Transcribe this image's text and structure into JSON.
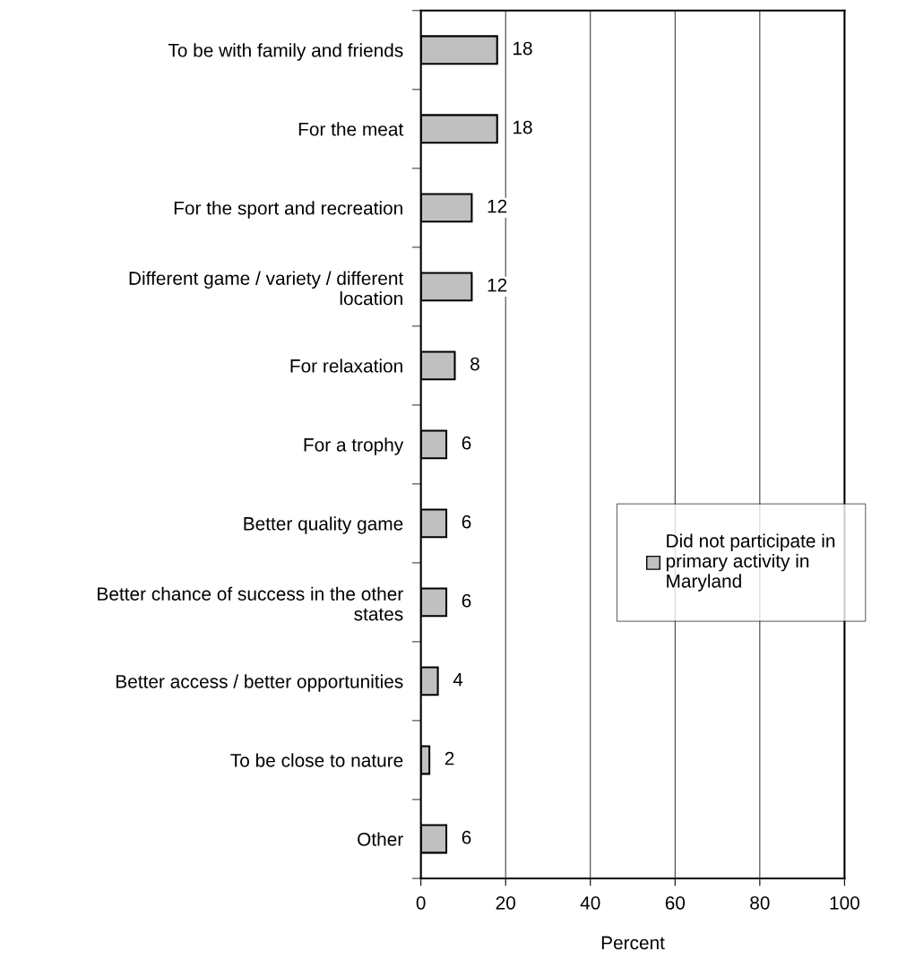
{
  "chart_data": {
    "type": "bar",
    "orientation": "horizontal",
    "xlabel": "Percent",
    "categories": [
      "To be with family and friends",
      "For the meat",
      "For the sport and recreation",
      "Different game / variety / different\nlocation",
      "For relaxation",
      "For a trophy",
      "Better quality game",
      "Better chance of success in the other\nstates",
      "Better access / better opportunities",
      "To be close to nature",
      "Other"
    ],
    "series": [
      {
        "name": "Did not participate in primary activity in Maryland",
        "color": "#c0c0c0",
        "values": [
          18,
          18,
          12,
          12,
          8,
          6,
          6,
          6,
          4,
          2,
          6
        ]
      }
    ],
    "xlim": [
      0,
      100
    ],
    "xticks": [
      0,
      20,
      40,
      60,
      80,
      100
    ],
    "grid": "x",
    "legend": "right",
    "data_labels": true
  }
}
